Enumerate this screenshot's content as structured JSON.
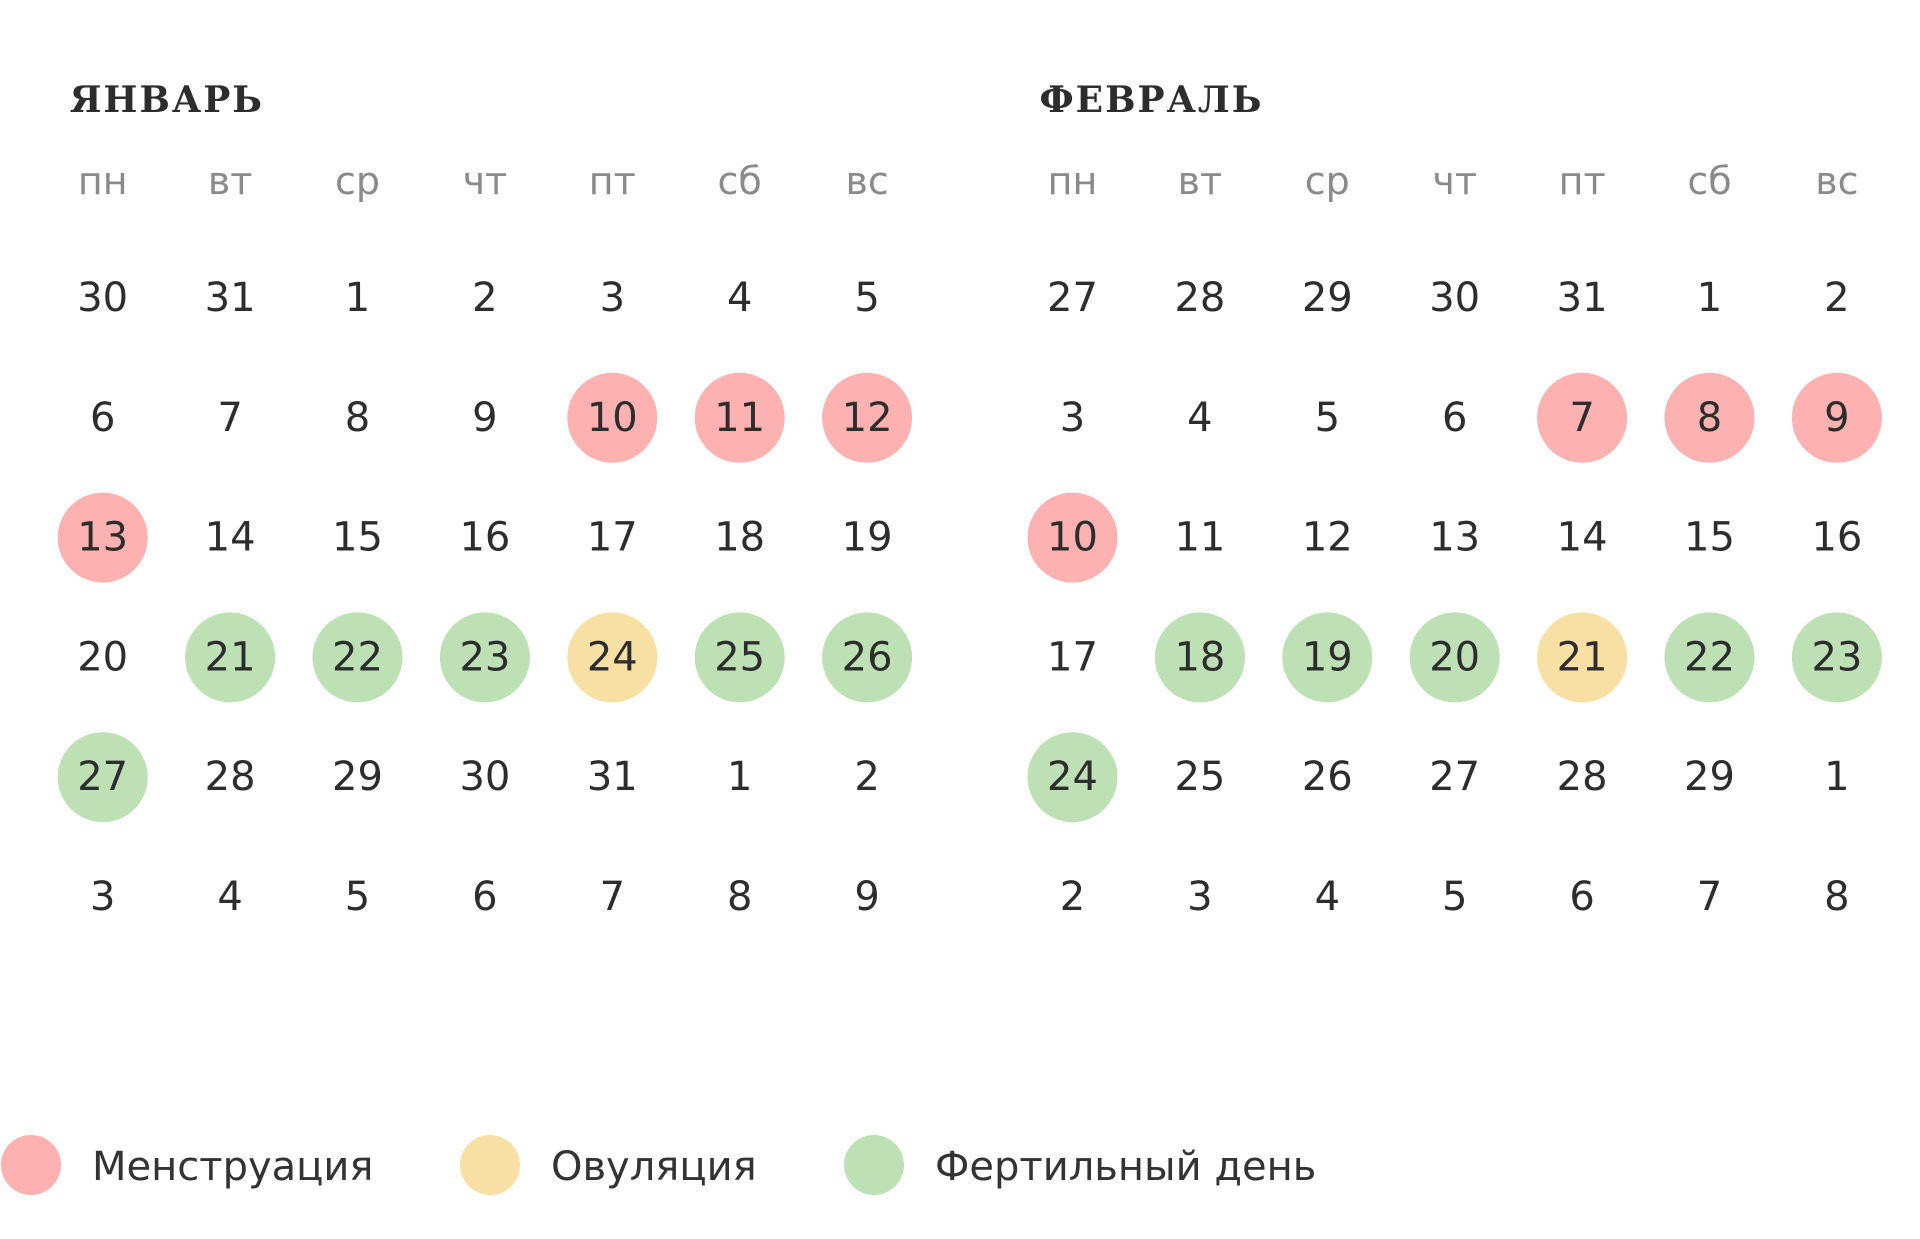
{
  "months": [
    {
      "title": "ЯНВАРЬ",
      "weekdays": [
        {
          "t": "пн"
        },
        {
          "t": "вт"
        },
        {
          "t": "ср"
        },
        {
          "t": "чт"
        },
        {
          "t": "пт"
        },
        {
          "t": "сб",
          "color": "#e8585b"
        },
        {
          "t": "вс",
          "color": "#e8585b"
        }
      ],
      "weeks": [
        [
          {
            "n": "30",
            "muted": true
          },
          {
            "n": "31",
            "muted": true
          },
          {
            "n": "1"
          },
          {
            "n": "2"
          },
          {
            "n": "3"
          },
          {
            "n": "4"
          },
          {
            "n": "5"
          }
        ],
        [
          {
            "n": "6"
          },
          {
            "n": "7"
          },
          {
            "n": "8"
          },
          {
            "n": "9"
          },
          {
            "n": "10",
            "color": "#fdb1b1"
          },
          {
            "n": "11",
            "color": "#fdb1b1"
          },
          {
            "n": "12",
            "color": "#fdb1b1"
          }
        ],
        [
          {
            "n": "13",
            "color": "#fdb1b1"
          },
          {
            "n": "14"
          },
          {
            "n": "15"
          },
          {
            "n": "16"
          },
          {
            "n": "17"
          },
          {
            "n": "18"
          },
          {
            "n": "19"
          }
        ],
        [
          {
            "n": "20"
          },
          {
            "n": "21",
            "color": "#bde0b5"
          },
          {
            "n": "22",
            "color": "#bde0b5"
          },
          {
            "n": "23",
            "color": "#bde0b5"
          },
          {
            "n": "24",
            "color": "#f8dfa3"
          },
          {
            "n": "25",
            "color": "#bde0b5"
          },
          {
            "n": "26",
            "color": "#bde0b5"
          }
        ],
        [
          {
            "n": "27",
            "color": "#bde0b5"
          },
          {
            "n": "28"
          },
          {
            "n": "29"
          },
          {
            "n": "30"
          },
          {
            "n": "31"
          },
          {
            "n": "1",
            "muted": true
          },
          {
            "n": "2",
            "muted": true
          }
        ],
        [
          {
            "n": "3",
            "muted": true
          },
          {
            "n": "4",
            "muted": true
          },
          {
            "n": "5",
            "muted": true
          },
          {
            "n": "6",
            "muted": true
          },
          {
            "n": "7",
            "muted": true
          },
          {
            "n": "8",
            "muted": true
          },
          {
            "n": "9",
            "muted": true
          }
        ]
      ]
    },
    {
      "title": "ФЕВРАЛЬ",
      "weekdays": [
        {
          "t": "пн"
        },
        {
          "t": "вт"
        },
        {
          "t": "ср"
        },
        {
          "t": "чт"
        },
        {
          "t": "пт"
        },
        {
          "t": "сб",
          "color": "#e8585b"
        },
        {
          "t": "вс",
          "color": "#e8585b"
        }
      ],
      "weeks": [
        [
          {
            "n": "27",
            "muted": true
          },
          {
            "n": "28",
            "muted": true
          },
          {
            "n": "29",
            "muted": true
          },
          {
            "n": "30",
            "muted": true
          },
          {
            "n": "31",
            "muted": true
          },
          {
            "n": "1"
          },
          {
            "n": "2"
          }
        ],
        [
          {
            "n": "3"
          },
          {
            "n": "4"
          },
          {
            "n": "5"
          },
          {
            "n": "6"
          },
          {
            "n": "7",
            "color": "#fdb1b1"
          },
          {
            "n": "8",
            "color": "#fdb1b1"
          },
          {
            "n": "9",
            "color": "#fdb1b1"
          }
        ],
        [
          {
            "n": "10",
            "color": "#fdb1b1"
          },
          {
            "n": "11"
          },
          {
            "n": "12"
          },
          {
            "n": "13"
          },
          {
            "n": "14"
          },
          {
            "n": "15"
          },
          {
            "n": "16"
          }
        ],
        [
          {
            "n": "17"
          },
          {
            "n": "18",
            "color": "#bde0b5"
          },
          {
            "n": "19",
            "color": "#bde0b5"
          },
          {
            "n": "20",
            "color": "#bde0b5"
          },
          {
            "n": "21",
            "color": "#f8dfa3"
          },
          {
            "n": "22",
            "color": "#bde0b5"
          },
          {
            "n": "23",
            "color": "#bde0b5"
          }
        ],
        [
          {
            "n": "24",
            "color": "#bde0b5"
          },
          {
            "n": "25"
          },
          {
            "n": "26"
          },
          {
            "n": "27"
          },
          {
            "n": "28"
          },
          {
            "n": "29"
          },
          {
            "n": "1",
            "muted": true
          }
        ],
        [
          {
            "n": "2",
            "muted": true
          },
          {
            "n": "3",
            "muted": true
          },
          {
            "n": "4",
            "muted": true
          },
          {
            "n": "5",
            "muted": true
          },
          {
            "n": "6",
            "muted": true
          },
          {
            "n": "7",
            "muted": true
          },
          {
            "n": "8",
            "muted": true
          }
        ]
      ]
    }
  ],
  "legend": [
    {
      "label": "Менструация",
      "color": "#fdb1b1"
    },
    {
      "label": "Овуляция",
      "color": "#f8dfa3"
    },
    {
      "label": "Фертильный день",
      "color": "#bde0b5"
    }
  ]
}
